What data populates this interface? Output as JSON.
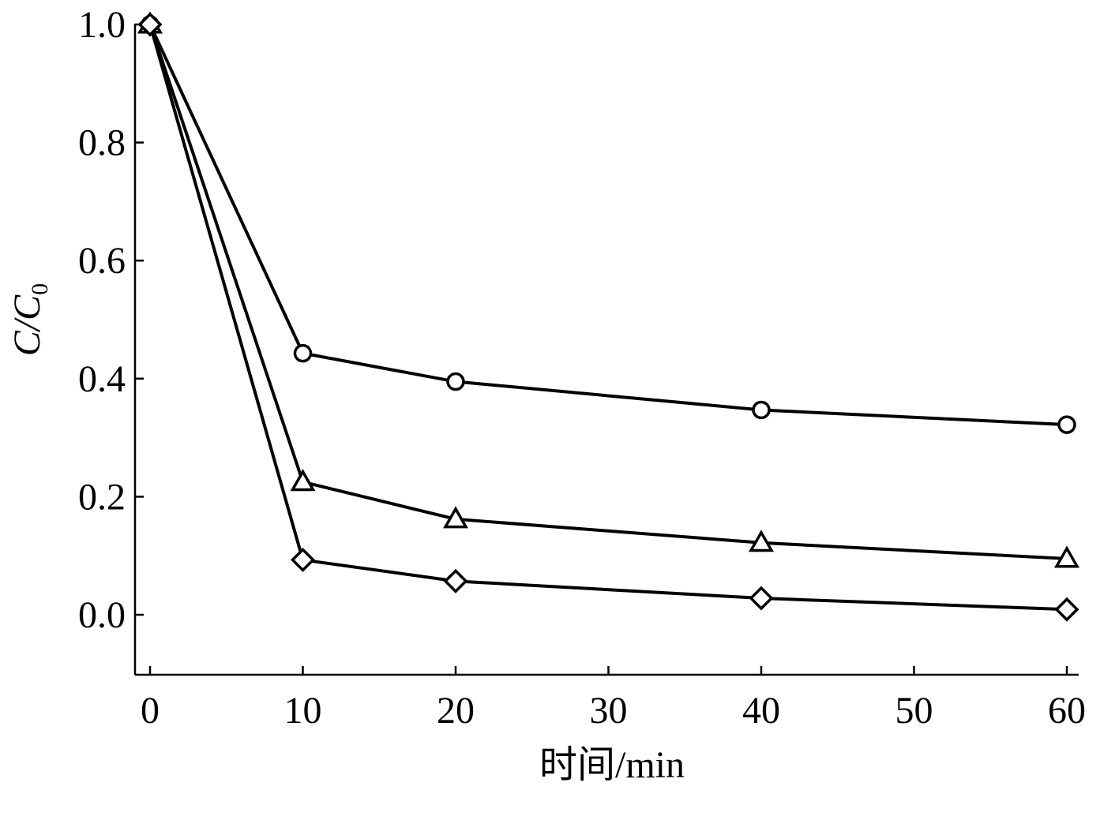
{
  "chart_data": {
    "type": "line",
    "xlabel": "时间/min",
    "ylabel": {
      "main": "C/C",
      "subscript": "0"
    },
    "xlim": [
      -1.5,
      61
    ],
    "ylim": [
      -0.1,
      1.0
    ],
    "xticks": [
      0,
      10,
      20,
      30,
      40,
      50,
      60
    ],
    "xtick_labels": [
      "0",
      "10",
      "20",
      "30",
      "40",
      "50",
      "60"
    ],
    "yticks": [
      0.0,
      0.2,
      0.4,
      0.6,
      0.8,
      1.0
    ],
    "ytick_labels": [
      "0.0",
      "0.2",
      "0.4",
      "0.6",
      "0.8",
      "1.0"
    ],
    "grid": false,
    "legend": "none",
    "series": [
      {
        "marker": "circle",
        "x": [
          0,
          10,
          20,
          40,
          60
        ],
        "y": [
          1.0,
          0.443,
          0.395,
          0.347,
          0.322
        ]
      },
      {
        "marker": "triangle",
        "x": [
          0,
          10,
          20,
          40,
          60
        ],
        "y": [
          1.0,
          0.225,
          0.162,
          0.122,
          0.095
        ]
      },
      {
        "marker": "diamond",
        "x": [
          0,
          10,
          20,
          40,
          60
        ],
        "y": [
          1.0,
          0.093,
          0.057,
          0.028,
          0.009
        ]
      }
    ]
  }
}
